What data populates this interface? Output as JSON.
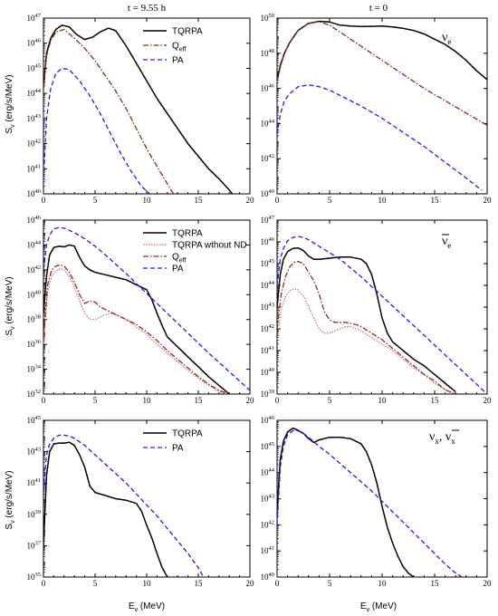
{
  "header": {
    "left": "t = 9.55 h",
    "right": "t = 0"
  },
  "axis_labels": {
    "x": "E",
    "x_sub": "ν",
    "x_unit": " (MeV)",
    "y": "S",
    "y_sub": "ν",
    "y_unit": " (erg/s/MeV)"
  },
  "flavor_labels": {
    "electron": "ν",
    "electron_sub": "e",
    "antielectron": "ν",
    "antielectron_sub": "e",
    "heavy": "ν",
    "heavy_sub": "x",
    "heavy_sep": ", ",
    "heavy_bar": "ν",
    "heavy_bar_sub": "x"
  },
  "colors": {
    "tqrpa": "#000000",
    "qeff": "#8b2a1a",
    "pa": "#1a1aff",
    "nond": "#d46a6a"
  },
  "chart_data": [
    {
      "id": "p1",
      "type": "line",
      "xlim": [
        0,
        20
      ],
      "ylim_exp": [
        40,
        47
      ],
      "log_y": true,
      "xticks": [
        0,
        5,
        10,
        15,
        20
      ],
      "yticks_exp": [
        40,
        41,
        42,
        43,
        44,
        45,
        46,
        47
      ],
      "legend": "top-right",
      "series": [
        {
          "name": "TQRPA",
          "style": "solid",
          "color": "#000000",
          "x": [
            0,
            0.3,
            0.7,
            1.2,
            1.8,
            2.5,
            3.2,
            4,
            4.8,
            5.5,
            6.3,
            7,
            8,
            9,
            10,
            11,
            12,
            13,
            14,
            15,
            16,
            17,
            18,
            18.3
          ],
          "y": [
            44.2,
            45.6,
            46.2,
            46.55,
            46.72,
            46.65,
            46.35,
            46.15,
            46.25,
            46.45,
            46.6,
            46.5,
            45.9,
            45.2,
            44.5,
            43.8,
            43.2,
            42.6,
            42.0,
            41.5,
            41.0,
            40.6,
            40.15,
            40
          ]
        },
        {
          "name": "Q_eff",
          "style": "dashdot",
          "color": "#8b2a1a",
          "x": [
            0,
            0.3,
            0.7,
            1.2,
            2,
            3,
            4,
            5,
            6,
            7,
            8,
            9,
            10,
            11,
            12,
            12.6
          ],
          "y": [
            44.2,
            45.5,
            46.1,
            46.45,
            46.55,
            46.2,
            45.8,
            45.3,
            44.7,
            44.1,
            43.4,
            42.6,
            41.8,
            41.1,
            40.4,
            40
          ]
        },
        {
          "name": "PA",
          "style": "dashed",
          "color": "#1a1aff",
          "x": [
            0,
            0.3,
            0.7,
            1.2,
            1.8,
            2.5,
            3.5,
            4.5,
            5.5,
            6.5,
            7.5,
            8.5,
            9.5,
            10.3
          ],
          "y": [
            40.6,
            43,
            44.2,
            44.8,
            45.0,
            44.95,
            44.5,
            43.9,
            43.2,
            42.4,
            41.6,
            40.9,
            40.3,
            40
          ]
        }
      ]
    },
    {
      "id": "p2",
      "type": "line",
      "xlim": [
        0,
        20
      ],
      "ylim_exp": [
        40,
        50
      ],
      "log_y": true,
      "xticks": [
        0,
        5,
        10,
        15,
        20
      ],
      "yticks_exp": [
        40,
        42,
        44,
        46,
        48,
        50
      ],
      "series": [
        {
          "name": "TQRPA",
          "style": "solid",
          "color": "#000000",
          "x": [
            0,
            0.3,
            0.7,
            1.2,
            2,
            3,
            4,
            5,
            6,
            7,
            8,
            9,
            10,
            11,
            12,
            13,
            14,
            15,
            16,
            17,
            18,
            19,
            20
          ],
          "y": [
            46.5,
            47.3,
            48,
            48.6,
            49.3,
            49.7,
            49.82,
            49.78,
            49.6,
            49.55,
            49.52,
            49.53,
            49.55,
            49.5,
            49.42,
            49.3,
            49.1,
            48.8,
            48.5,
            48.1,
            47.6,
            47.0,
            46.5
          ]
        },
        {
          "name": "Q_eff",
          "style": "dashdot",
          "color": "#8b2a1a",
          "x": [
            0,
            0.3,
            0.7,
            1.2,
            2,
            3,
            4,
            5,
            6,
            8,
            10,
            12,
            14,
            16,
            18,
            20
          ],
          "y": [
            46.4,
            47.2,
            48,
            48.6,
            49.3,
            49.7,
            49.8,
            49.6,
            49.2,
            48.4,
            47.6,
            46.8,
            46.0,
            45.3,
            44.6,
            43.9
          ]
        },
        {
          "name": "PA",
          "style": "dashed",
          "color": "#1a1aff",
          "x": [
            0,
            0.3,
            0.7,
            1.2,
            2,
            3,
            4,
            5,
            6,
            8,
            10,
            12,
            14,
            16,
            18,
            19.5
          ],
          "y": [
            43.4,
            44.5,
            45.3,
            45.7,
            46.1,
            46.2,
            46.1,
            45.9,
            45.6,
            45.0,
            44.3,
            43.5,
            42.7,
            41.8,
            40.9,
            40.2
          ]
        }
      ]
    },
    {
      "id": "p3",
      "type": "line",
      "xlim": [
        0,
        20
      ],
      "ylim_exp": [
        32,
        46
      ],
      "log_y": true,
      "xticks": [
        0,
        5,
        10,
        15,
        20
      ],
      "yticks_exp": [
        32,
        34,
        36,
        38,
        40,
        42,
        44,
        46
      ],
      "legend": "top-right",
      "series": [
        {
          "name": "TQRPA",
          "style": "solid",
          "color": "#000000",
          "x": [
            0,
            0.3,
            0.6,
            1,
            1.5,
            2,
            2.5,
            3,
            3.5,
            4,
            4.5,
            5,
            6,
            7,
            8,
            9,
            10,
            10.5,
            11,
            11.5,
            12,
            13,
            14,
            15,
            16,
            17,
            18
          ],
          "y": [
            38.5,
            41.5,
            43.2,
            43.8,
            43.9,
            43.85,
            44.0,
            43.9,
            43.0,
            42.3,
            42.0,
            41.8,
            41.6,
            41.4,
            41.2,
            40.8,
            40.4,
            39.6,
            38.5,
            37.5,
            36.6,
            35.8,
            35.0,
            34.2,
            33.4,
            32.7,
            32.0
          ]
        },
        {
          "name": "TQRPA wthout ND",
          "style": "dotted",
          "color": "#d46a6a",
          "x": [
            0,
            0.4,
            0.8,
            1.2,
            1.6,
            2,
            2.5,
            3,
            3.5,
            4,
            4.5,
            5,
            5.5,
            6,
            6.5,
            7,
            8,
            9,
            10,
            11,
            12,
            13,
            14,
            15,
            16,
            17,
            17.8
          ],
          "y": [
            36,
            40.2,
            41.5,
            41.9,
            42.1,
            42.0,
            41.5,
            40.6,
            39.5,
            38.5,
            38.0,
            38.0,
            38.2,
            38.4,
            38.5,
            38.4,
            38.0,
            37.4,
            36.8,
            36.0,
            35.3,
            34.6,
            33.9,
            33.3,
            32.7,
            32.2,
            32.0
          ]
        },
        {
          "name": "Q_eff",
          "style": "dashdot",
          "color": "#8b2a1a",
          "x": [
            0,
            0.4,
            0.8,
            1.2,
            1.6,
            2,
            2.5,
            3,
            3.5,
            4,
            4.5,
            5,
            5.5,
            6,
            6.5,
            7,
            8,
            9,
            10,
            11,
            12,
            13,
            14,
            15,
            16,
            17,
            18
          ],
          "y": [
            36.5,
            40.8,
            42,
            42.3,
            42.4,
            42.3,
            41.8,
            41.0,
            40.0,
            39.3,
            39.5,
            39.4,
            39.0,
            38.8,
            38.6,
            38.4,
            38.0,
            37.6,
            37.0,
            36.3,
            35.5,
            34.8,
            34.1,
            33.4,
            32.8,
            32.3,
            32.0
          ]
        },
        {
          "name": "PA",
          "style": "dashed",
          "color": "#1a1aff",
          "x": [
            0,
            0.3,
            0.6,
            1,
            1.5,
            2,
            3,
            4,
            5,
            6,
            8,
            10,
            12,
            14,
            16,
            18,
            20
          ],
          "y": [
            42,
            44,
            44.8,
            45.3,
            45.4,
            45.35,
            45.0,
            44.5,
            43.9,
            43.2,
            41.7,
            40.1,
            38.5,
            36.9,
            35.3,
            33.8,
            32.3
          ]
        }
      ]
    },
    {
      "id": "p4",
      "type": "line",
      "xlim": [
        0,
        20
      ],
      "ylim_exp": [
        39,
        47
      ],
      "log_y": true,
      "xticks": [
        0,
        5,
        10,
        15,
        20
      ],
      "yticks_exp": [
        39,
        40,
        41,
        42,
        43,
        44,
        45,
        46,
        47
      ],
      "series": [
        {
          "name": "TQRPA",
          "style": "solid",
          "color": "#000000",
          "x": [
            0,
            0.3,
            0.6,
            1,
            1.5,
            2,
            2.5,
            3,
            3.5,
            4,
            5,
            6,
            7,
            8,
            8.5,
            9,
            9.5,
            10,
            10.5,
            11,
            12,
            13,
            14,
            15,
            16,
            17
          ],
          "y": [
            43,
            44.5,
            45.2,
            45.55,
            45.7,
            45.72,
            45.6,
            45.35,
            45.2,
            45.2,
            45.25,
            45.3,
            45.3,
            45.2,
            45.0,
            44.5,
            43.6,
            42.5,
            41.8,
            41.4,
            41.0,
            40.6,
            40.3,
            39.9,
            39.5,
            39.1
          ]
        },
        {
          "name": "TQRPA wthout ND",
          "style": "dotted",
          "color": "#d46a6a",
          "x": [
            0,
            0.4,
            0.8,
            1.2,
            1.6,
            2,
            2.5,
            3,
            3.5,
            4,
            4.5,
            5,
            5.5,
            6,
            6.5,
            7,
            7.5,
            8,
            9,
            10,
            11,
            12,
            13,
            14,
            15,
            16,
            16.8
          ],
          "y": [
            41.5,
            42.9,
            43.5,
            43.75,
            43.85,
            43.8,
            43.5,
            43.0,
            42.5,
            42.0,
            41.8,
            41.8,
            41.9,
            42.0,
            42.1,
            42.1,
            42.0,
            41.9,
            41.6,
            41.3,
            41.0,
            40.6,
            40.2,
            39.9,
            39.5,
            39.2,
            39.0
          ]
        },
        {
          "name": "Q_eff",
          "style": "dashdot",
          "color": "#8b2a1a",
          "x": [
            0,
            0.4,
            0.8,
            1.2,
            1.6,
            2,
            2.5,
            3,
            3.5,
            4,
            4.5,
            5,
            5.5,
            6,
            6.5,
            7,
            7.5,
            8,
            9,
            10,
            11,
            12,
            13,
            14,
            15,
            16,
            17
          ],
          "y": [
            42,
            43.6,
            44.4,
            44.85,
            45.05,
            45.1,
            45.0,
            44.6,
            44.2,
            43.6,
            42.8,
            42.4,
            42.3,
            42.3,
            42.3,
            42.25,
            42.2,
            42.1,
            41.8,
            41.5,
            41.1,
            40.7,
            40.3,
            39.9,
            39.6,
            39.2,
            39.0
          ]
        },
        {
          "name": "PA",
          "style": "dashed",
          "color": "#1a1aff",
          "x": [
            0,
            0.3,
            0.6,
            1,
            1.5,
            2,
            2.5,
            3,
            4,
            5,
            6,
            8,
            10,
            12,
            14,
            16,
            18,
            20
          ],
          "y": [
            44,
            45.2,
            45.7,
            46.05,
            46.2,
            46.25,
            46.2,
            46.1,
            45.8,
            45.5,
            45.2,
            44.4,
            43.5,
            42.6,
            41.7,
            40.8,
            39.9,
            39.0
          ]
        }
      ]
    },
    {
      "id": "p5",
      "type": "line",
      "xlim": [
        0,
        20
      ],
      "ylim_exp": [
        35,
        45
      ],
      "log_y": true,
      "xticks": [
        0,
        5,
        10,
        15,
        20
      ],
      "yticks_exp": [
        35,
        37,
        39,
        41,
        43,
        45
      ],
      "legend": "top-right",
      "series": [
        {
          "name": "TQRPA",
          "style": "solid",
          "color": "#000000",
          "x": [
            0,
            0.3,
            0.6,
            1,
            1.5,
            2,
            2.5,
            3,
            3.5,
            4,
            4.5,
            5,
            6,
            7,
            8,
            9,
            9.5,
            10,
            10.5,
            11,
            11.5,
            12
          ],
          "y": [
            37,
            41.5,
            43.0,
            43.5,
            43.55,
            43.55,
            43.6,
            43.4,
            42.8,
            42.0,
            40.8,
            40.4,
            40.2,
            40.0,
            39.9,
            39.7,
            39.2,
            38.3,
            37.5,
            36.5,
            35.6,
            35.0
          ]
        },
        {
          "name": "PA",
          "style": "dashed",
          "color": "#1a1aff",
          "x": [
            0,
            0.3,
            0.6,
            1,
            1.5,
            2,
            2.5,
            3,
            4,
            5,
            6,
            7,
            8,
            9,
            10,
            11,
            12,
            13,
            14,
            15,
            15.5
          ],
          "y": [
            40.5,
            42.8,
            43.5,
            43.85,
            44.05,
            44.05,
            44.0,
            43.85,
            43.4,
            42.8,
            42.2,
            41.6,
            41.0,
            40.3,
            39.6,
            38.9,
            38.1,
            37.3,
            36.5,
            35.6,
            35.0
          ]
        }
      ]
    },
    {
      "id": "p6",
      "type": "line",
      "xlim": [
        0,
        20
      ],
      "ylim_exp": [
        40,
        46
      ],
      "log_y": true,
      "xticks": [
        0,
        5,
        10,
        15,
        20
      ],
      "yticks_exp": [
        40,
        41,
        42,
        43,
        44,
        45,
        46
      ],
      "series": [
        {
          "name": "TQRPA",
          "style": "solid",
          "color": "#000000",
          "x": [
            0,
            0.3,
            0.6,
            1,
            1.5,
            2,
            2.5,
            3,
            3.5,
            4,
            5,
            6,
            7,
            8,
            8.5,
            9,
            9.5,
            10,
            10.5,
            11,
            11.5,
            12,
            12.5,
            13
          ],
          "y": [
            42.5,
            44.5,
            45.2,
            45.55,
            45.7,
            45.62,
            45.5,
            45.3,
            45.15,
            45.25,
            45.35,
            45.35,
            45.3,
            45.1,
            44.8,
            44.3,
            43.6,
            42.7,
            41.9,
            41.3,
            40.8,
            40.4,
            40.15,
            40.0
          ]
        },
        {
          "name": "PA",
          "style": "dashed",
          "color": "#1a1aff",
          "x": [
            0,
            0.3,
            0.6,
            1,
            1.5,
            2,
            2.5,
            3,
            4,
            5,
            6,
            7,
            8,
            9,
            10,
            11,
            12,
            13,
            14,
            15,
            16,
            17,
            17.6
          ],
          "y": [
            42,
            44.2,
            45.0,
            45.45,
            45.6,
            45.6,
            45.5,
            45.35,
            45.0,
            44.7,
            44.35,
            44.0,
            43.65,
            43.3,
            42.9,
            42.5,
            42.1,
            41.7,
            41.3,
            40.9,
            40.5,
            40.15,
            40.0
          ]
        }
      ]
    }
  ]
}
